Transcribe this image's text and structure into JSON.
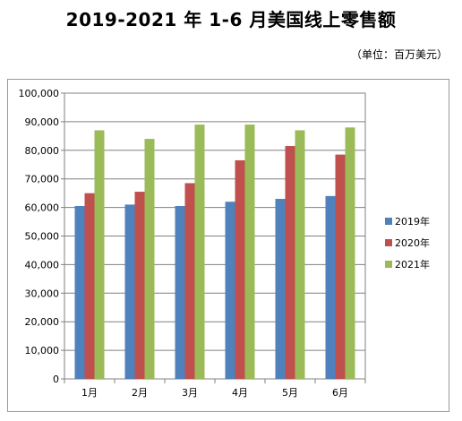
{
  "header": {
    "title": "2019-2021 年 1-6 月美国线上零售额",
    "unit_note": "（单位：百万美元）"
  },
  "chart_data": {
    "type": "bar",
    "categories": [
      "1月",
      "2月",
      "3月",
      "4月",
      "5月",
      "6月"
    ],
    "series": [
      {
        "name": "2019年",
        "color": "#4f81bd",
        "values": [
          60500,
          61000,
          60500,
          62000,
          63000,
          64000
        ]
      },
      {
        "name": "2020年",
        "color": "#c0504d",
        "values": [
          65000,
          65500,
          68500,
          76500,
          81500,
          78500
        ]
      },
      {
        "name": "2021年",
        "color": "#9bbb59",
        "values": [
          87000,
          84000,
          89000,
          89000,
          87000,
          88000
        ]
      }
    ],
    "ylim": [
      0,
      100000
    ],
    "yticks": [
      "0",
      "10,000",
      "20,000",
      "30,000",
      "40,000",
      "50,000",
      "60,000",
      "70,000",
      "80,000",
      "90,000",
      "100,000"
    ],
    "grid": true,
    "legend_position": "right"
  }
}
